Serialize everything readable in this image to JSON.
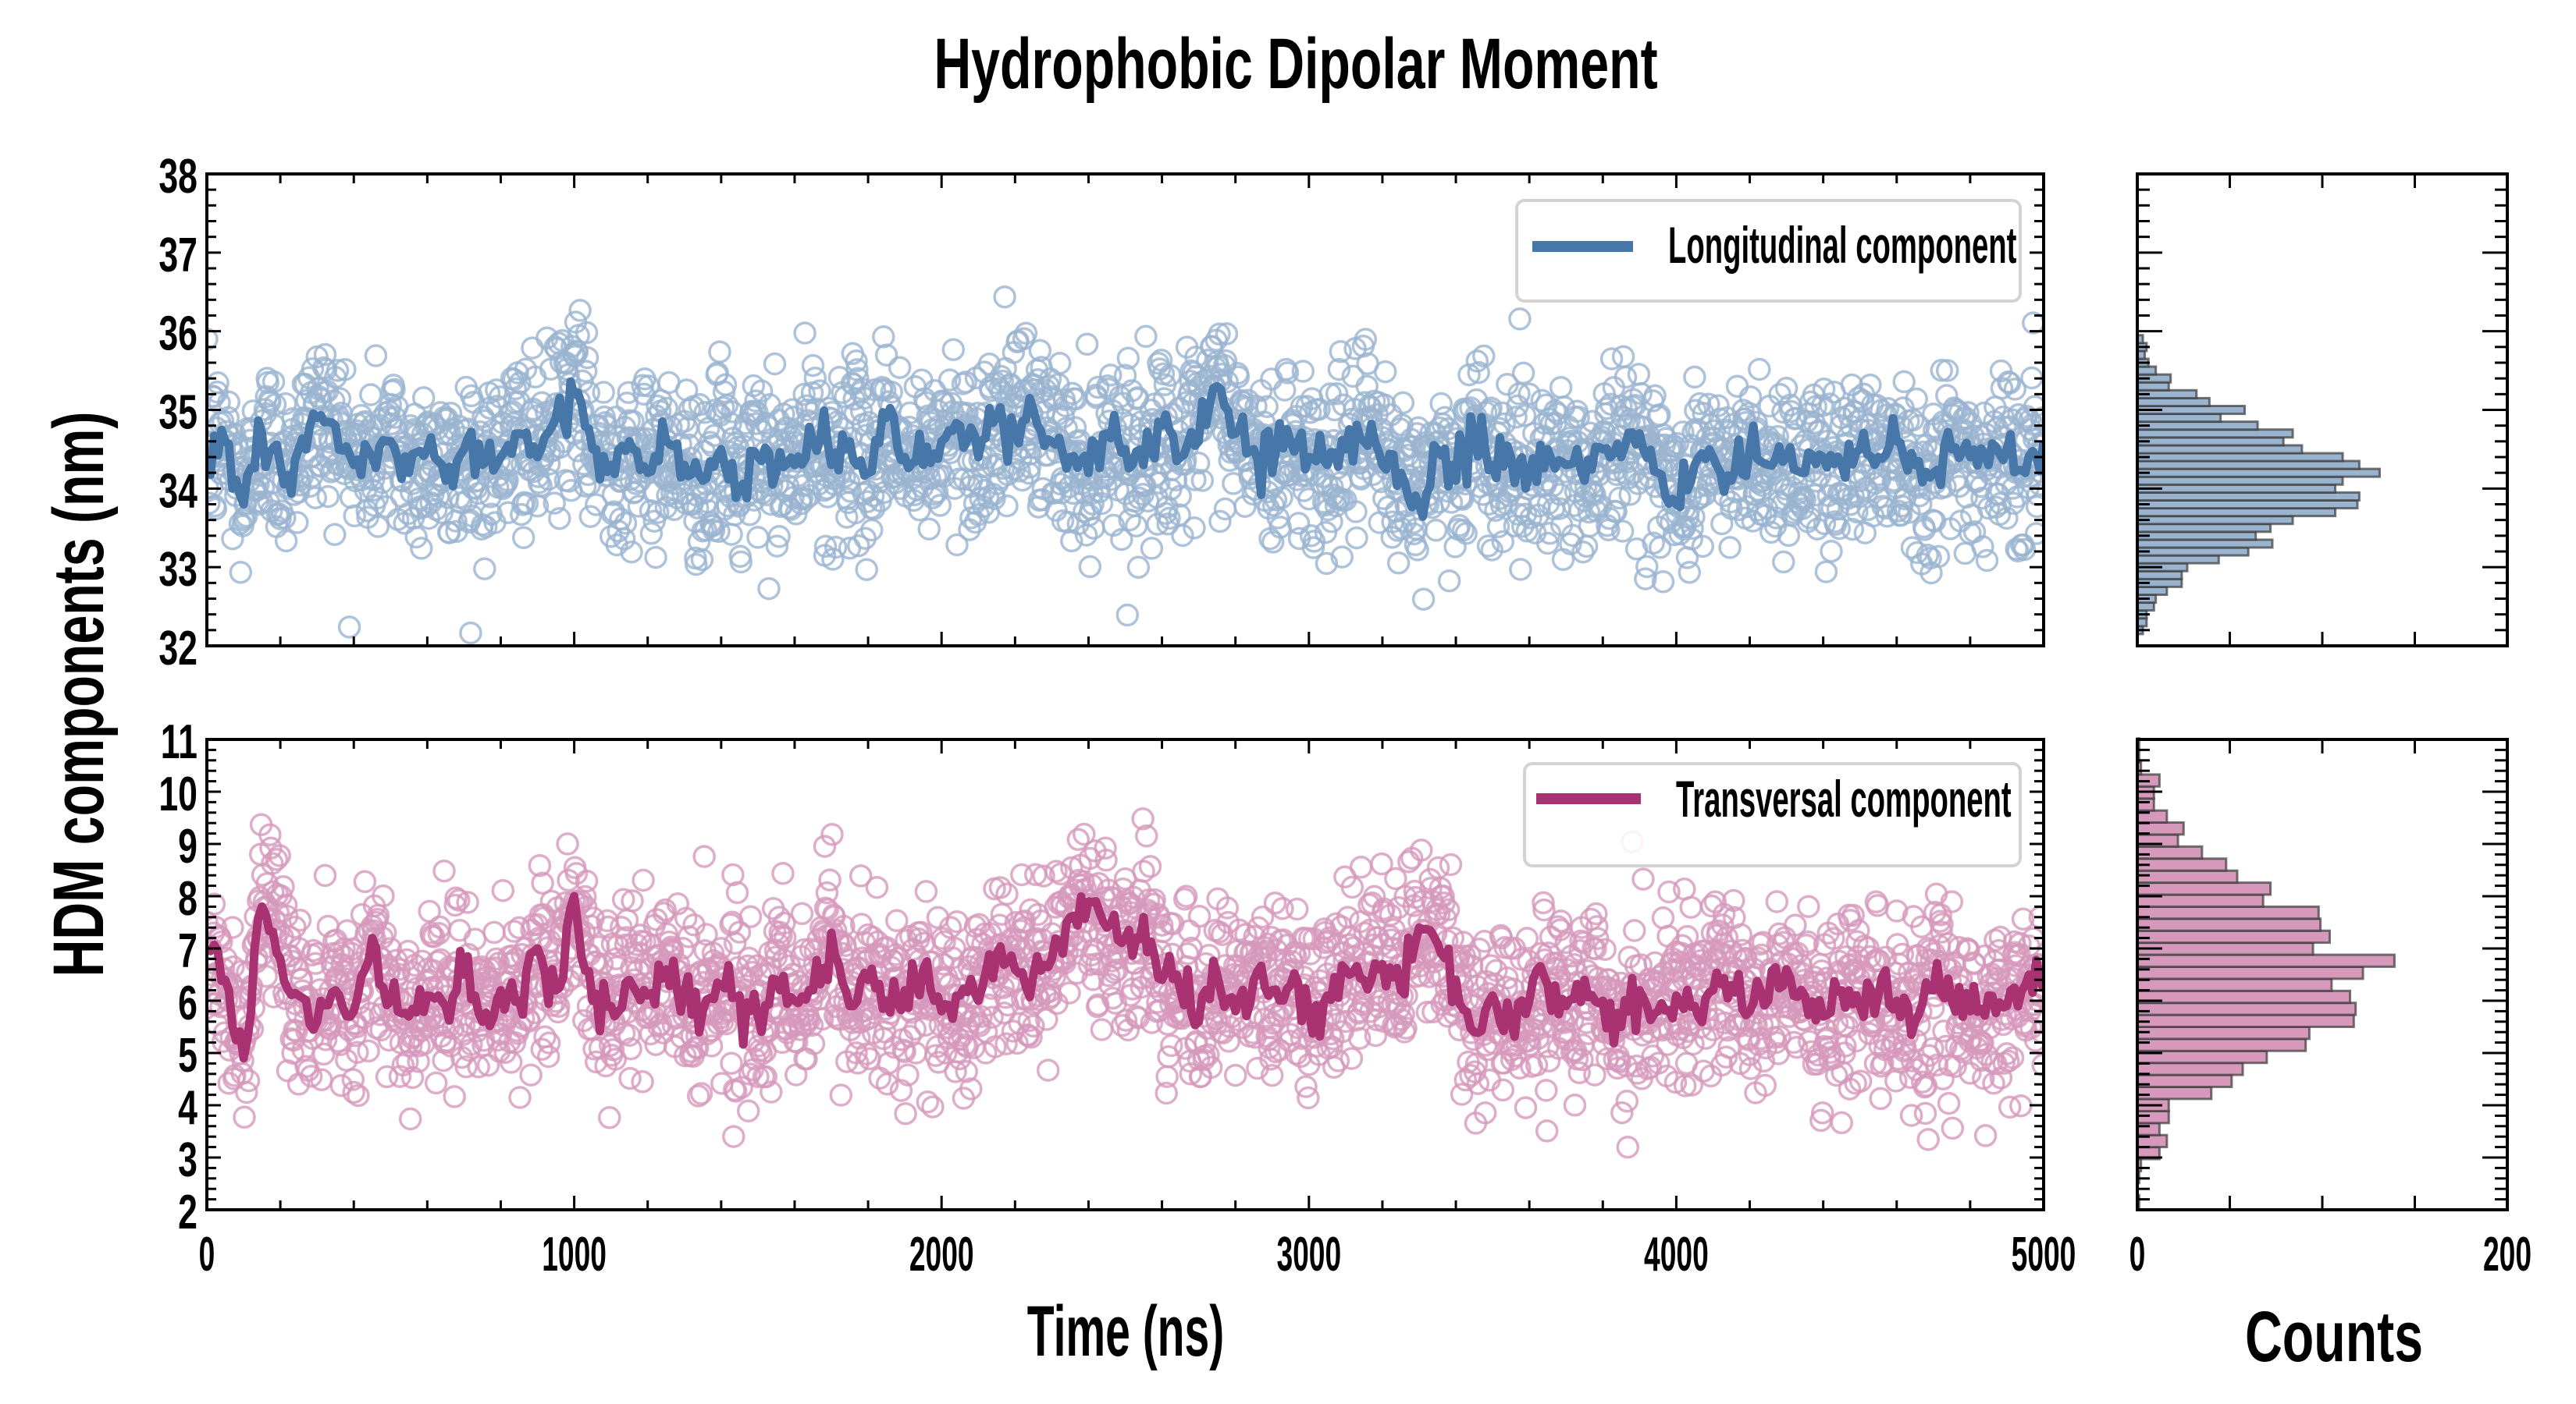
{
  "chart_data": [
    {
      "type": "scatter",
      "panel": "top-left",
      "title": "Hydrophobic Dipolar Moment",
      "xlabel": "Time (ns)",
      "ylabel": "HDM components (nm)",
      "xlim": [
        0,
        5000
      ],
      "ylim": [
        32,
        38
      ],
      "xticks": [
        "0",
        "1000",
        "2000",
        "3000",
        "4000",
        "5000"
      ],
      "yticks": [
        "32",
        "33",
        "34",
        "35",
        "36",
        "37",
        "38"
      ],
      "legend": {
        "label": "Longitudinal component",
        "placement": "top-right"
      },
      "color": "#4677a8",
      "marker_color": "#9ab4d0",
      "point_count_approx": 2500,
      "scatter_spread_sd": 0.75,
      "running_average": {
        "x_step": 50,
        "values": [
          34.4,
          34.6,
          33.8,
          34.7,
          34.3,
          34.5,
          34.9,
          34.8,
          34.3,
          34.4,
          34.6,
          34.2,
          34.5,
          34.1,
          34.5,
          34.3,
          34.4,
          34.7,
          34.4,
          34.9,
          35.2,
          34.5,
          34.3,
          34.6,
          34.2,
          34.6,
          34.3,
          34.1,
          34.5,
          34.0,
          34.4,
          34.2,
          34.3,
          34.6,
          34.3,
          34.6,
          34.2,
          34.9,
          34.4,
          34.3,
          34.6,
          34.8,
          34.4,
          34.9,
          34.7,
          35.0,
          34.6,
          34.4,
          34.2,
          34.7,
          34.5,
          34.3,
          34.8,
          34.4,
          34.6,
          35.3,
          34.7,
          34.5,
          34.2,
          34.6,
          34.4,
          34.3,
          34.5,
          34.6,
          34.3,
          34.2,
          33.8,
          34.5,
          34.1,
          34.7,
          34.3,
          34.4,
          34.2,
          34.5,
          34.3,
          34.1,
          34.5,
          34.4,
          34.7,
          34.2,
          33.8,
          34.3,
          34.4,
          34.1,
          34.5,
          34.3,
          34.4,
          34.2,
          34.4,
          34.3,
          34.5,
          34.4,
          34.6,
          34.3,
          34.2,
          34.5,
          34.4,
          34.3,
          34.5,
          34.2,
          34.6
        ]
      }
    },
    {
      "type": "scatter",
      "panel": "bottom-left",
      "xlabel": "Time (ns)",
      "ylabel": "HDM components (nm)",
      "xlim": [
        0,
        5000
      ],
      "ylim": [
        2,
        11
      ],
      "xticks": [
        "0",
        "1000",
        "2000",
        "3000",
        "4000",
        "5000"
      ],
      "yticks": [
        "2",
        "3",
        "4",
        "5",
        "6",
        "7",
        "8",
        "9",
        "10",
        "11"
      ],
      "legend": {
        "label": "Transversal component",
        "placement": "top-right"
      },
      "color": "#a93273",
      "marker_color": "#d699bb",
      "point_count_approx": 2500,
      "scatter_spread_sd": 1.15,
      "running_average": {
        "x_step": 50,
        "values": [
          7.0,
          6.4,
          4.9,
          7.8,
          6.8,
          6.1,
          5.6,
          6.2,
          5.8,
          7.2,
          6.0,
          5.7,
          6.1,
          5.9,
          6.5,
          5.6,
          6.2,
          6.0,
          7.0,
          6.2,
          8.0,
          6.0,
          5.9,
          6.4,
          6.1,
          6.6,
          6.2,
          5.8,
          6.3,
          6.1,
          5.7,
          6.4,
          6.0,
          6.2,
          7.3,
          5.9,
          6.4,
          6.0,
          6.2,
          6.6,
          5.8,
          6.1,
          6.0,
          6.9,
          6.6,
          6.5,
          6.8,
          7.6,
          7.9,
          7.4,
          7.2,
          7.6,
          6.4,
          6.2,
          5.6,
          6.5,
          5.8,
          6.4,
          6.2,
          6.3,
          5.8,
          6.1,
          6.6,
          6.4,
          6.7,
          6.2,
          7.4,
          7.1,
          6.4,
          5.4,
          6.1,
          5.6,
          6.0,
          6.3,
          5.9,
          6.4,
          6.0,
          5.5,
          6.2,
          5.8,
          6.1,
          5.9,
          6.2,
          6.3,
          5.8,
          6.0,
          6.6,
          6.1,
          5.7,
          6.2,
          5.9,
          6.1,
          6.0,
          5.6,
          6.2,
          6.0,
          5.8,
          6.1,
          5.9,
          6.3,
          6.2
        ]
      }
    },
    {
      "type": "bar",
      "orientation": "horizontal",
      "panel": "top-right",
      "xlabel": "",
      "xlim": [
        0,
        200
      ],
      "ylim": [
        32,
        38
      ],
      "bin_width": 0.1,
      "bin_start": 32.15,
      "color": "#9ab4d0",
      "edge_color": "#3a3a3a",
      "values": [
        3,
        5,
        5,
        9,
        10,
        16,
        24,
        24,
        27,
        44,
        60,
        73,
        64,
        72,
        84,
        107,
        119,
        120,
        107,
        111,
        131,
        120,
        111,
        89,
        79,
        84,
        65,
        45,
        58,
        39,
        32,
        17,
        18,
        10,
        6,
        4,
        5,
        3
      ]
    },
    {
      "type": "bar",
      "orientation": "horizontal",
      "panel": "bottom-right",
      "xlabel": "Counts",
      "xlim": [
        0,
        200
      ],
      "xticks": [
        "0",
        "200"
      ],
      "ylim": [
        2,
        11
      ],
      "bin_width": 0.23,
      "bin_start": 2.05,
      "color": "#d699bb",
      "edge_color": "#3a3a3a",
      "values": [
        1,
        0,
        1,
        2,
        12,
        16,
        12,
        17,
        17,
        40,
        51,
        57,
        70,
        91,
        93,
        117,
        118,
        115,
        105,
        122,
        139,
        95,
        104,
        99,
        98,
        68,
        72,
        54,
        48,
        35,
        22,
        25,
        16,
        9,
        9,
        12,
        2,
        1,
        1
      ]
    }
  ]
}
